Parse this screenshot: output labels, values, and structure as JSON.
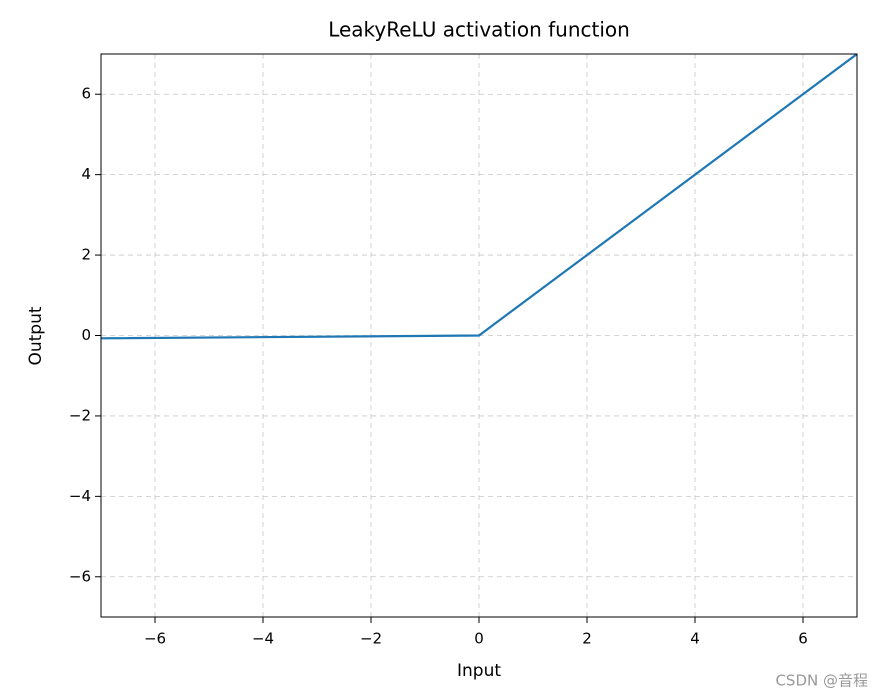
{
  "chart_data": {
    "type": "line",
    "title": "LeakyReLU activation function",
    "x_label": "Input",
    "y_label": "Output",
    "x": [
      -7,
      0,
      7
    ],
    "values": [
      -0.07,
      0,
      7
    ],
    "color": "#1f77b4",
    "xlim": [
      -7,
      7
    ],
    "ylim": [
      -7,
      7
    ],
    "xticks": [
      {
        "value": -6,
        "label": "−6"
      },
      {
        "value": -4,
        "label": "−4"
      },
      {
        "value": -2,
        "label": "−2"
      },
      0,
      2,
      4,
      6
    ],
    "yticks": [
      {
        "value": -6,
        "label": "−6"
      },
      {
        "value": -4,
        "label": "−4"
      },
      {
        "value": -2,
        "label": "−2"
      },
      0,
      2,
      4,
      6
    ],
    "grid": true,
    "watermark": "CSDN @音程"
  }
}
